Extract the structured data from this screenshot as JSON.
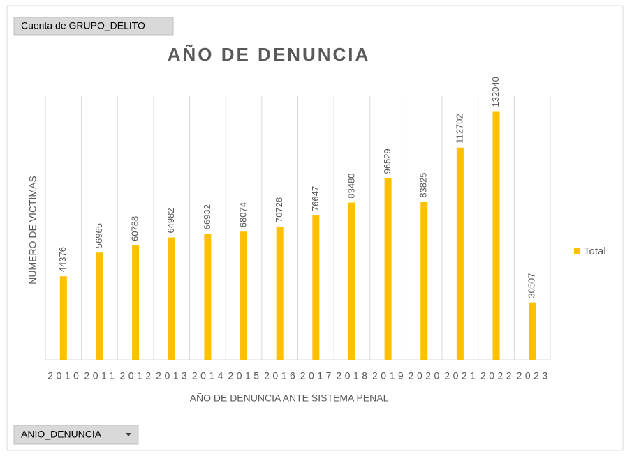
{
  "chart_data": {
    "type": "bar",
    "title": "AÑO DE DENUNCIA",
    "value_field": "Cuenta de GRUPO_DELITO",
    "axis_field": "ANIO_DENUNCIA",
    "x_label": "AÑO DE DENUNCIA ANTE SISTEMA PENAL",
    "y_label": "NUMERO DE VICTIMAS",
    "categories": [
      "2010",
      "2011",
      "2012",
      "2013",
      "2014",
      "2015",
      "2016",
      "2017",
      "2018",
      "2019",
      "2020",
      "2021",
      "2022",
      "2023"
    ],
    "series": [
      {
        "name": "Total",
        "color": "#ffc000",
        "values": [
          44376,
          56965,
          60788,
          64982,
          66932,
          68074,
          70728,
          76647,
          83480,
          96529,
          83825,
          112702,
          132040,
          30507
        ]
      }
    ],
    "ylim": [
      0,
      140000
    ],
    "legend": "right"
  }
}
